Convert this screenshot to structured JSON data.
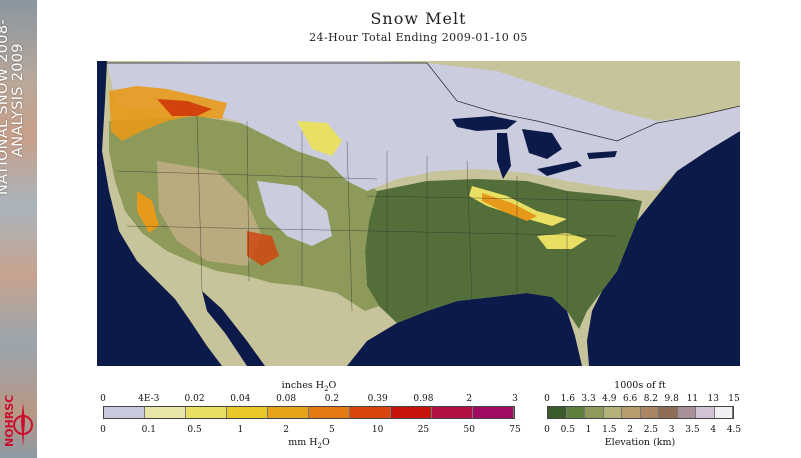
{
  "title": "Snow Melt",
  "subtitle": "24-Hour Total Ending 2009-01-10 05",
  "banner": {
    "line1": "NATIONAL SNOW 2008-",
    "line2": "ANALYSIS 2009"
  },
  "logo_text": "NOHRSC",
  "legend_snow": {
    "top_title": "inches H2O",
    "bottom_title": "mm H2O",
    "inches_labels": [
      "0",
      "4E-3",
      "0.02",
      "0.04",
      "0.08",
      "0.2",
      "0.39",
      "0.98",
      "2",
      "3"
    ],
    "mm_labels": [
      "0",
      "0.1",
      "0.5",
      "1",
      "2",
      "5",
      "10",
      "25",
      "50",
      "75"
    ],
    "colors": [
      "#c9c9de",
      "#e9e6a8",
      "#e9e063",
      "#e9c92a",
      "#e7a41a",
      "#e37a11",
      "#d9450c",
      "#c8130e",
      "#b20f43",
      "#a00c63"
    ]
  },
  "legend_elev": {
    "top_title": "1000s of ft",
    "bottom_title": "Elevation (km)",
    "ft_labels": [
      "0",
      "1.6",
      "3.3",
      "4.9",
      "6.6",
      "8.2",
      "9.8",
      "11",
      "13",
      "15"
    ],
    "km_labels": [
      "0",
      "0.5",
      "1",
      "1.5",
      "2",
      "2.5",
      "3",
      "3.5",
      "4",
      "4.5"
    ],
    "colors": [
      "#3b5b2a",
      "#5f7f3f",
      "#8d9a5a",
      "#b3b07a",
      "#b89c6e",
      "#a98562",
      "#8f6e55",
      "#a8909a",
      "#d2c2d6",
      "#f1eef4"
    ]
  },
  "map_colors": {
    "ocean": "#0c1a4a",
    "land_outside": "#c7c49b",
    "snow": "#ccccdf",
    "lowland": "#546e39",
    "mid": "#7f8f4e",
    "high": "#b9ab7d",
    "melt_low": "#e9e063",
    "melt_mid": "#e79a1a",
    "melt_high": "#d2420c"
  }
}
